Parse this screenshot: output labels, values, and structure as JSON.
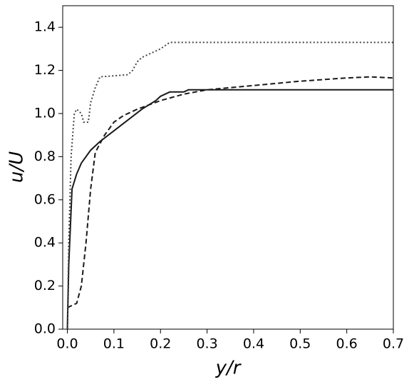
{
  "chart_data": {
    "type": "line",
    "x_label": "y/r",
    "y_label": "u/U",
    "xlim": [
      -0.01,
      0.7
    ],
    "ylim": [
      0,
      1.5
    ],
    "xticks": [
      {
        "value": 0,
        "label": "0.0"
      },
      0.1,
      0.2,
      0.3,
      0.4,
      0.5,
      0.6,
      0.7
    ],
    "yticks": [
      {
        "value": 0,
        "label": "0.0"
      },
      0.2,
      0.4,
      0.6,
      0.8,
      {
        "value": 1,
        "label": "1.0"
      },
      1.2,
      1.4
    ],
    "grid": false,
    "series": [
      {
        "color": "#1a1a1a",
        "dash": "solid",
        "x": [
          0,
          0.003,
          0.01,
          0.02,
          0.03,
          0.05,
          0.07,
          0.1,
          0.13,
          0.16,
          0.19,
          0.2,
          0.21,
          0.22,
          0.25,
          0.26,
          0.3,
          0.7
        ],
        "values": [
          0,
          0.3,
          0.65,
          0.72,
          0.77,
          0.83,
          0.87,
          0.92,
          0.97,
          1.02,
          1.06,
          1.08,
          1.09,
          1.1,
          1.1,
          1.11,
          1.11,
          1.11
        ]
      },
      {
        "color": "#1a1a1a",
        "dash": "dashed",
        "x": [
          0,
          0.01,
          0.02,
          0.03,
          0.04,
          0.05,
          0.06,
          0.08,
          0.1,
          0.12,
          0.15,
          0.2,
          0.25,
          0.3,
          0.4,
          0.5,
          0.6,
          0.65,
          0.7
        ],
        "values": [
          0.1,
          0.11,
          0.12,
          0.2,
          0.4,
          0.65,
          0.82,
          0.9,
          0.96,
          0.99,
          1.02,
          1.06,
          1.09,
          1.11,
          1.13,
          1.15,
          1.165,
          1.17,
          1.165
        ]
      },
      {
        "color": "#444444",
        "dash": "dotted",
        "x": [
          0,
          0.003,
          0.008,
          0.015,
          0.02,
          0.03,
          0.035,
          0.045,
          0.05,
          0.06,
          0.07,
          0.1,
          0.13,
          0.14,
          0.15,
          0.16,
          0.18,
          0.2,
          0.22,
          0.3,
          0.7
        ],
        "values": [
          0,
          0.4,
          0.8,
          1.0,
          1.02,
          1.0,
          0.96,
          0.96,
          1.05,
          1.12,
          1.17,
          1.175,
          1.18,
          1.2,
          1.24,
          1.26,
          1.28,
          1.3,
          1.33,
          1.33,
          1.33
        ]
      }
    ]
  }
}
